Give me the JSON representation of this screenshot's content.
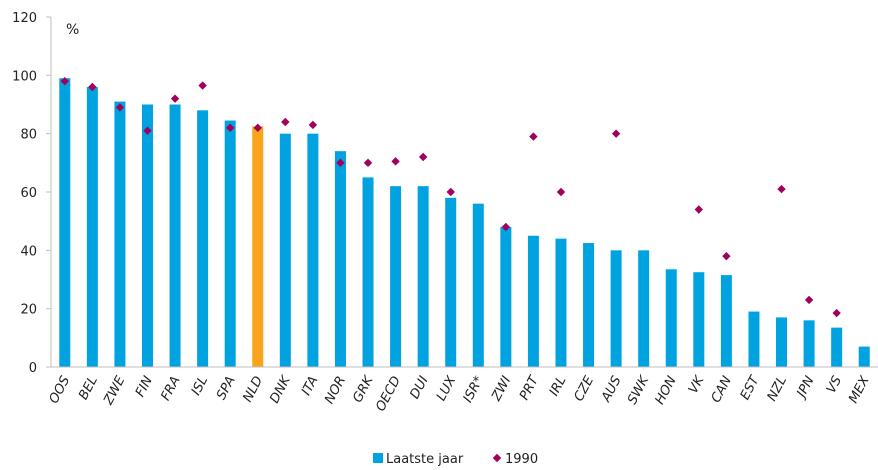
{
  "chart_data": {
    "type": "bar",
    "unit_label": "%",
    "ylim": [
      0,
      120
    ],
    "yticks": [
      0,
      20,
      40,
      60,
      80,
      100,
      120
    ],
    "grid": false,
    "legend_position": "bottom-center",
    "highlight_category": "NLD",
    "colors": {
      "bar": "#00a3e0",
      "highlight": "#f9a41b",
      "marker": "#a2005e",
      "axis": "#bfbfbf"
    },
    "categories": [
      "OOS",
      "BEL",
      "ZWE",
      "FIN",
      "FRA",
      "ISL",
      "SPA",
      "NLD",
      "DNK",
      "ITA",
      "NOR",
      "GRK",
      "OECD",
      "DUI",
      "LUX",
      "ISR*",
      "ZWI",
      "PRT",
      "IRL",
      "CZE",
      "AUS",
      "SWK",
      "HON",
      "VK",
      "CAN",
      "EST",
      "NZL",
      "JPN",
      "VS",
      "MEX"
    ],
    "series": [
      {
        "name": "Laatste jaar",
        "kind": "bar",
        "values": [
          99,
          96,
          91,
          90,
          90,
          88,
          84.5,
          82.5,
          80,
          80,
          74,
          65,
          62,
          62,
          58,
          56,
          48,
          45,
          44,
          42.5,
          40,
          40,
          33.5,
          32.5,
          31.5,
          19,
          17,
          16,
          13.5,
          7
        ]
      },
      {
        "name": "1990",
        "kind": "marker",
        "values": [
          98,
          96,
          89,
          81,
          92,
          96.5,
          82,
          82,
          84,
          83,
          70,
          70,
          70.5,
          72,
          60,
          null,
          48,
          79,
          60,
          null,
          80,
          null,
          null,
          54,
          38,
          null,
          61,
          23,
          18.5,
          null
        ]
      }
    ]
  }
}
